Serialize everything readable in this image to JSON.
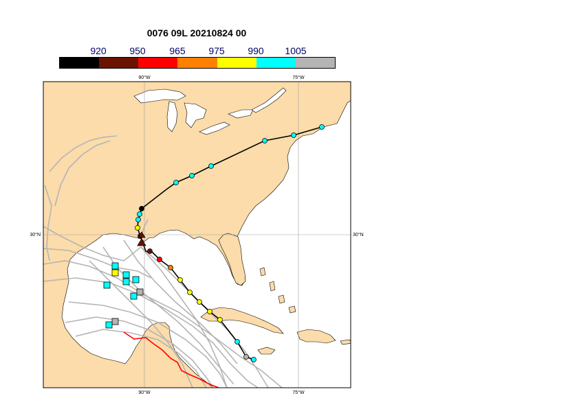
{
  "title": "0076 09L 20210824 00",
  "legend": {
    "labels": [
      "920",
      "950",
      "965",
      "975",
      "990",
      "1005"
    ],
    "colors": [
      "#000000",
      "#6b1300",
      "#ff0000",
      "#ff8000",
      "#ffff00",
      "#00ffff",
      "#b4b4b4"
    ]
  },
  "axis_labels": {
    "lon_top_1": "90°W",
    "lon_top_2": "75°W",
    "lon_bottom_1": "90°W",
    "lon_bottom_2": "75°W",
    "lat_left": "30°N",
    "lat_right": "30°N"
  },
  "colors": {
    "land": "#fbdcaa",
    "water": "#ffffff",
    "grid": "#a0a0a0",
    "track": "#000000",
    "ensemble": "#b4b4b4",
    "observed": "#ff0000"
  }
}
